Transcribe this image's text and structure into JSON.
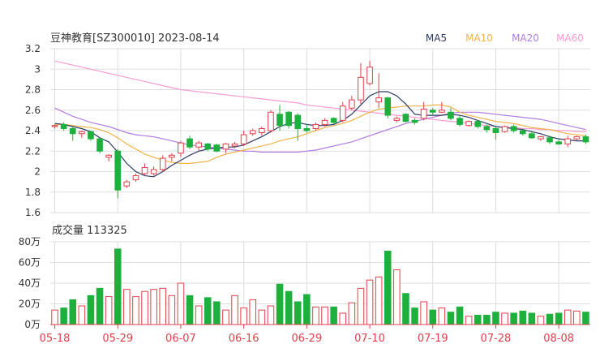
{
  "colors": {
    "up": "#e0404b",
    "down": "#1eb03c",
    "ma5": "#2c3a66",
    "ma10": "#f0b34a",
    "ma20": "#b27be0",
    "ma60": "#f79bd3",
    "grid": "#dddddd",
    "axis_text": "#333333",
    "date_text": "#e0404b"
  },
  "chart_data": [
    {
      "type": "candlestick",
      "title": "豆神教育[SZ300010] 2023-08-14",
      "legend": [
        "MA5",
        "MA10",
        "MA20",
        "MA60"
      ],
      "legend_placement": "top-right",
      "ylim": [
        1.6,
        3.2
      ],
      "yticks": [
        "3.2",
        "3",
        "2.8",
        "2.6",
        "2.4",
        "2.2",
        "2",
        "1.8",
        "1.6"
      ],
      "grid": true,
      "ohlc": [
        [
          2.44,
          2.46,
          2.42,
          2.45
        ],
        [
          2.46,
          2.48,
          2.4,
          2.42
        ],
        [
          2.42,
          2.44,
          2.3,
          2.37
        ],
        [
          2.37,
          2.4,
          2.33,
          2.39
        ],
        [
          2.39,
          2.4,
          2.3,
          2.32
        ],
        [
          2.32,
          2.33,
          2.18,
          2.2
        ],
        [
          2.14,
          2.17,
          2.1,
          2.16
        ],
        [
          2.2,
          2.22,
          1.74,
          1.82
        ],
        [
          1.86,
          1.92,
          1.84,
          1.9
        ],
        [
          1.92,
          1.98,
          1.9,
          1.96
        ],
        [
          1.98,
          2.08,
          1.96,
          2.04
        ],
        [
          1.98,
          2.05,
          1.96,
          2.02
        ],
        [
          2.02,
          2.16,
          2.0,
          2.13
        ],
        [
          2.14,
          2.18,
          2.1,
          2.16
        ],
        [
          2.18,
          2.3,
          2.14,
          2.28
        ],
        [
          2.32,
          2.35,
          2.22,
          2.24
        ],
        [
          2.24,
          2.3,
          2.2,
          2.28
        ],
        [
          2.27,
          2.28,
          2.2,
          2.22
        ],
        [
          2.26,
          2.27,
          2.19,
          2.2
        ],
        [
          2.22,
          2.28,
          2.18,
          2.27
        ],
        [
          2.25,
          2.29,
          2.23,
          2.27
        ],
        [
          2.27,
          2.4,
          2.25,
          2.36
        ],
        [
          2.37,
          2.42,
          2.35,
          2.4
        ],
        [
          2.38,
          2.44,
          2.35,
          2.42
        ],
        [
          2.4,
          2.6,
          2.38,
          2.58
        ],
        [
          2.56,
          2.65,
          2.4,
          2.45
        ],
        [
          2.58,
          2.59,
          2.42,
          2.45
        ],
        [
          2.55,
          2.57,
          2.3,
          2.42
        ],
        [
          2.42,
          2.46,
          2.38,
          2.4
        ],
        [
          2.42,
          2.48,
          2.4,
          2.46
        ],
        [
          2.46,
          2.52,
          2.44,
          2.5
        ],
        [
          2.52,
          2.53,
          2.46,
          2.48
        ],
        [
          2.5,
          2.68,
          2.48,
          2.64
        ],
        [
          2.62,
          2.74,
          2.6,
          2.7
        ],
        [
          2.7,
          3.06,
          2.66,
          2.92
        ],
        [
          2.86,
          3.08,
          2.84,
          3.02
        ],
        [
          2.68,
          2.96,
          2.62,
          2.72
        ],
        [
          2.72,
          2.73,
          2.52,
          2.55
        ],
        [
          2.5,
          2.54,
          2.48,
          2.52
        ],
        [
          2.56,
          2.57,
          2.48,
          2.49
        ],
        [
          2.5,
          2.52,
          2.46,
          2.48
        ],
        [
          2.52,
          2.68,
          2.5,
          2.61
        ],
        [
          2.6,
          2.62,
          2.55,
          2.58
        ],
        [
          2.58,
          2.68,
          2.57,
          2.6
        ],
        [
          2.58,
          2.62,
          2.5,
          2.52
        ],
        [
          2.52,
          2.55,
          2.44,
          2.46
        ],
        [
          2.45,
          2.5,
          2.44,
          2.49
        ],
        [
          2.49,
          2.5,
          2.42,
          2.44
        ],
        [
          2.44,
          2.46,
          2.38,
          2.41
        ],
        [
          2.42,
          2.44,
          2.31,
          2.38
        ],
        [
          2.39,
          2.45,
          2.38,
          2.44
        ],
        [
          2.44,
          2.46,
          2.38,
          2.4
        ],
        [
          2.4,
          2.42,
          2.35,
          2.37
        ],
        [
          2.37,
          2.4,
          2.32,
          2.33
        ],
        [
          2.32,
          2.35,
          2.3,
          2.34
        ],
        [
          2.33,
          2.35,
          2.27,
          2.29
        ],
        [
          2.29,
          2.31,
          2.26,
          2.27
        ],
        [
          2.27,
          2.35,
          2.24,
          2.32
        ],
        [
          2.32,
          2.35,
          2.3,
          2.34
        ],
        [
          2.34,
          2.36,
          2.27,
          2.29
        ]
      ],
      "ma5": [
        2.47,
        2.46,
        2.44,
        2.42,
        2.39,
        2.33,
        2.29,
        2.19,
        2.08,
        2.0,
        1.96,
        1.95,
        2.0,
        2.06,
        2.11,
        2.16,
        2.2,
        2.22,
        2.23,
        2.24,
        2.24,
        2.26,
        2.3,
        2.34,
        2.39,
        2.44,
        2.47,
        2.48,
        2.46,
        2.45,
        2.45,
        2.46,
        2.5,
        2.56,
        2.65,
        2.74,
        2.78,
        2.78,
        2.74,
        2.66,
        2.56,
        2.55,
        2.55,
        2.55,
        2.56,
        2.55,
        2.53,
        2.5,
        2.47,
        2.44,
        2.43,
        2.42,
        2.41,
        2.39,
        2.37,
        2.34,
        2.32,
        2.31,
        2.3,
        2.3
      ],
      "ma10": [
        2.46,
        2.46,
        2.45,
        2.44,
        2.43,
        2.41,
        2.38,
        2.33,
        2.27,
        2.22,
        2.17,
        2.14,
        2.11,
        2.09,
        2.08,
        2.08,
        2.09,
        2.1,
        2.14,
        2.17,
        2.19,
        2.21,
        2.23,
        2.25,
        2.27,
        2.3,
        2.32,
        2.34,
        2.37,
        2.4,
        2.43,
        2.45,
        2.47,
        2.5,
        2.54,
        2.58,
        2.61,
        2.62,
        2.63,
        2.64,
        2.64,
        2.64,
        2.65,
        2.65,
        2.63,
        2.58,
        2.55,
        2.53,
        2.51,
        2.49,
        2.48,
        2.47,
        2.45,
        2.43,
        2.42,
        2.41,
        2.39,
        2.37,
        2.36,
        2.35
      ],
      "ma20": [
        2.62,
        2.58,
        2.54,
        2.51,
        2.48,
        2.46,
        2.44,
        2.41,
        2.38,
        2.36,
        2.35,
        2.34,
        2.32,
        2.3,
        2.28,
        2.26,
        2.25,
        2.24,
        2.23,
        2.22,
        2.21,
        2.2,
        2.2,
        2.19,
        2.19,
        2.19,
        2.19,
        2.19,
        2.2,
        2.21,
        2.23,
        2.25,
        2.27,
        2.29,
        2.32,
        2.35,
        2.38,
        2.41,
        2.44,
        2.47,
        2.49,
        2.51,
        2.53,
        2.55,
        2.57,
        2.58,
        2.58,
        2.58,
        2.57,
        2.56,
        2.55,
        2.54,
        2.53,
        2.52,
        2.51,
        2.49,
        2.47,
        2.45,
        2.43,
        2.41
      ],
      "ma60": [
        3.08,
        3.06,
        3.04,
        3.02,
        3.0,
        2.98,
        2.96,
        2.94,
        2.92,
        2.9,
        2.88,
        2.86,
        2.84,
        2.82,
        2.8,
        2.79,
        2.78,
        2.77,
        2.76,
        2.75,
        2.74,
        2.73,
        2.72,
        2.71,
        2.7,
        2.69,
        2.68,
        2.67,
        2.65,
        2.64,
        2.63,
        2.62,
        2.61,
        2.6,
        2.59,
        2.58,
        2.57,
        2.56,
        2.55,
        2.54,
        2.53,
        2.52,
        2.51,
        2.5,
        2.49,
        2.48,
        2.47,
        2.46,
        2.45,
        2.44,
        2.43,
        2.43,
        2.42,
        2.42,
        2.41,
        2.41,
        2.4,
        2.4,
        2.39,
        2.39
      ]
    },
    {
      "type": "bar",
      "title": "成交量 113325",
      "ylim": [
        0,
        80
      ],
      "yticks": [
        "80万",
        "60万",
        "40万",
        "20万",
        "0万"
      ],
      "grid": true,
      "x_ticks": [
        {
          "label": "05-18",
          "index": 0
        },
        {
          "label": "05-29",
          "index": 7
        },
        {
          "label": "06-07",
          "index": 14
        },
        {
          "label": "06-16",
          "index": 21
        },
        {
          "label": "06-29",
          "index": 28
        },
        {
          "label": "07-10",
          "index": 35
        },
        {
          "label": "07-19",
          "index": 42
        },
        {
          "label": "07-28",
          "index": 49
        },
        {
          "label": "08-08",
          "index": 56
        }
      ],
      "values": [
        14,
        16,
        24,
        18,
        28,
        35,
        27,
        73,
        34,
        27,
        32,
        34,
        35,
        28,
        40,
        28,
        18,
        26,
        22,
        14,
        28,
        16,
        24,
        14,
        18,
        39,
        32,
        22,
        29,
        17,
        17,
        17,
        11,
        21,
        35,
        43,
        46,
        71,
        53,
        30,
        16,
        22,
        14,
        16,
        12,
        17,
        8,
        9,
        9,
        12,
        11,
        11,
        13,
        11,
        8,
        10,
        11,
        14,
        13,
        12
      ]
    }
  ]
}
